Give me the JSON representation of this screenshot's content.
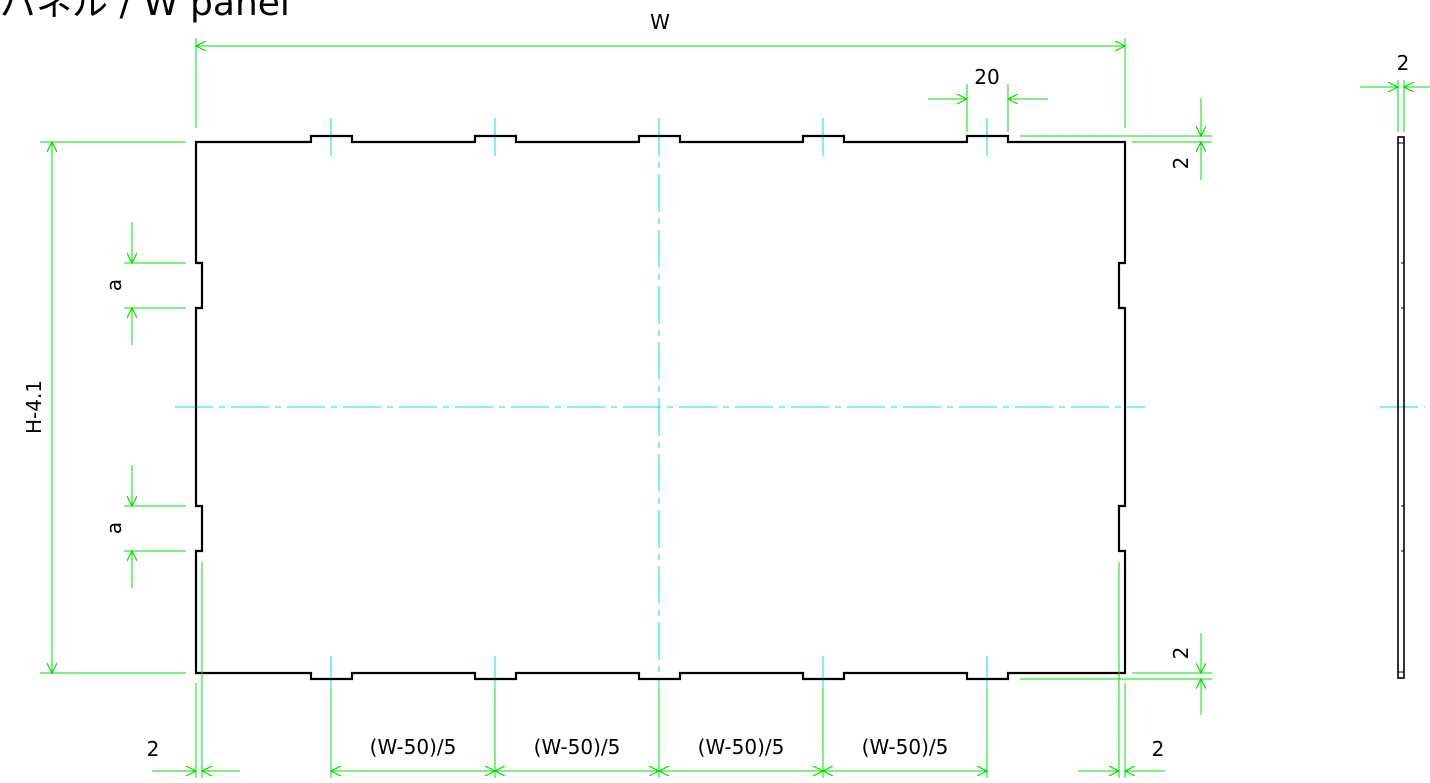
{
  "title": "パネル / W panel",
  "dimensions": {
    "width": "W",
    "tab_width": "20",
    "side_thickness": "2",
    "height": "H-4.1",
    "side_tab": "a",
    "top_offset": "2",
    "bottom_offset": "2",
    "left_edge": "2",
    "right_edge": "2",
    "pitch_labels": [
      "(W-50)/5",
      "(W-50)/5",
      "(W-50)/5",
      "(W-50)/5"
    ]
  },
  "colors": {
    "outline": "#000000",
    "dimension_lines": "#00e000",
    "center_lines": "#00e0e0"
  }
}
